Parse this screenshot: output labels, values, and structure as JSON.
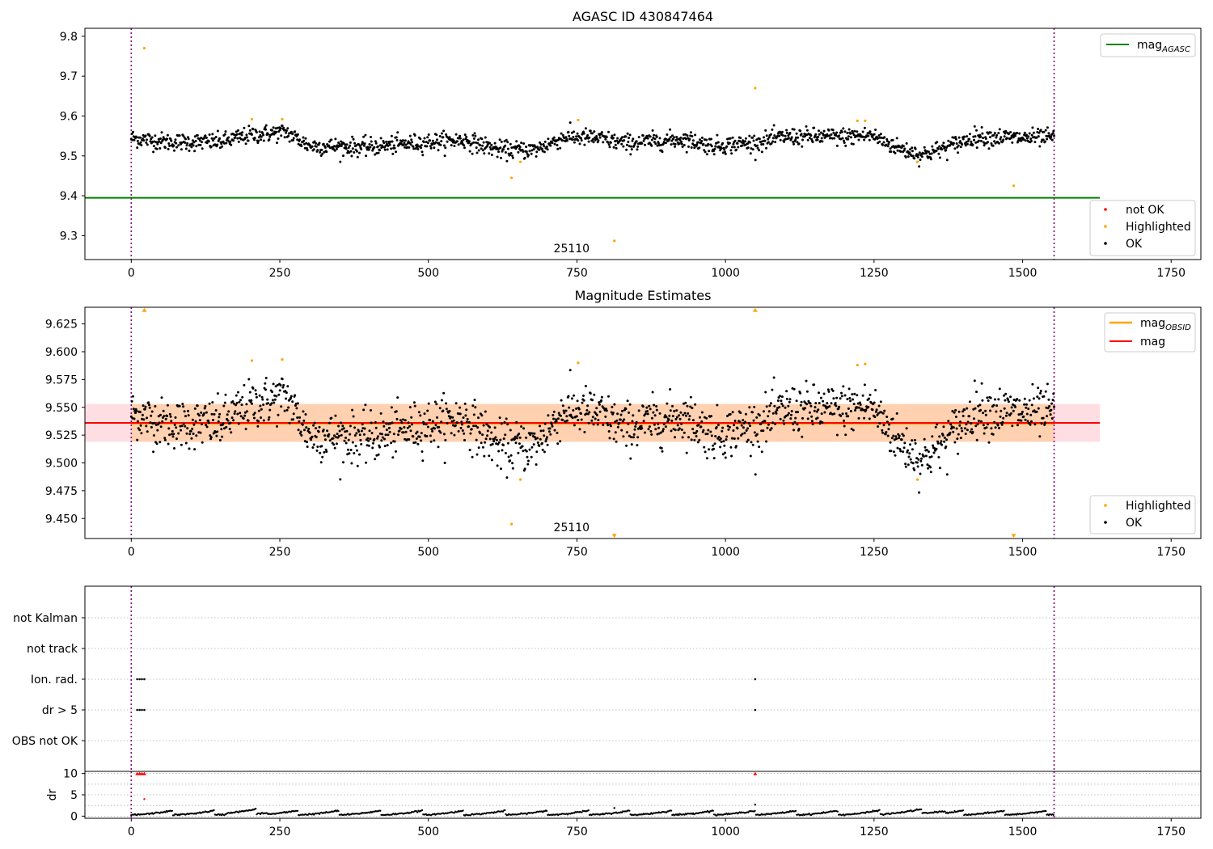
{
  "chart_data": [
    {
      "type": "scatter",
      "title": "AGASC ID 430847464",
      "xlim": [
        -78,
        1800
      ],
      "ylim": [
        9.24,
        9.82
      ],
      "x_ticks": [
        0,
        250,
        500,
        750,
        1000,
        1250,
        1500,
        1750
      ],
      "y_ticks": [
        9.3,
        9.4,
        9.5,
        9.6,
        9.7,
        9.8
      ],
      "y_tick_labels": [
        "9.3",
        "9.4",
        "9.5",
        "9.6",
        "9.7",
        "9.8"
      ],
      "vlines": [
        0,
        1553
      ],
      "obsid_annotation": {
        "text": "25110",
        "x": 775
      },
      "mag_agasc": {
        "name": "mag_AGASC",
        "label_main": "mag",
        "label_sub": "AGASC",
        "value": 9.395,
        "x_range": [
          -78,
          1630
        ],
        "color": "#008000"
      },
      "legend_upper": "top-right",
      "legend_lower": "bottom-right",
      "legend": [
        {
          "name": "not OK",
          "color": "#ff0000"
        },
        {
          "name": "Highlighted",
          "color": "#ffa500"
        },
        {
          "name": "OK",
          "color": "#000000"
        }
      ],
      "ok_series": {
        "n": 1546,
        "x_start": 0,
        "x_end": 1553,
        "color": "#000000"
      },
      "highlighted_points": [
        {
          "x": 22,
          "y": 9.77
        },
        {
          "x": 203,
          "y": 9.592
        },
        {
          "x": 254,
          "y": 9.592
        },
        {
          "x": 640,
          "y": 9.445
        },
        {
          "x": 655,
          "y": 9.485
        },
        {
          "x": 752,
          "y": 9.59
        },
        {
          "x": 813,
          "y": 9.287
        },
        {
          "x": 1050,
          "y": 9.67
        },
        {
          "x": 1222,
          "y": 9.588
        },
        {
          "x": 1235,
          "y": 9.588
        },
        {
          "x": 1323,
          "y": 9.485
        },
        {
          "x": 1485,
          "y": 9.425
        }
      ]
    },
    {
      "type": "scatter",
      "title": "Magnitude Estimates",
      "xlim": [
        -78,
        1800
      ],
      "ylim": [
        9.432,
        9.64
      ],
      "x_ticks": [
        0,
        250,
        500,
        750,
        1000,
        1250,
        1500,
        1750
      ],
      "y_ticks": [
        9.45,
        9.475,
        9.5,
        9.525,
        9.55,
        9.575,
        9.6,
        9.625
      ],
      "y_tick_labels": [
        "9.450",
        "9.475",
        "9.500",
        "9.525",
        "9.550",
        "9.575",
        "9.600",
        "9.625"
      ],
      "vlines": [
        0,
        1553
      ],
      "obsid_annotation": {
        "text": "25110",
        "x": 775
      },
      "mag_obsid": {
        "name": "mag_OBSID",
        "label_main": "mag",
        "label_sub": "OBSID",
        "value": 9.5355,
        "band": [
          9.519,
          9.553
        ],
        "x_range": [
          0,
          1553
        ],
        "color": "#ffa500"
      },
      "mag": {
        "name": "mag",
        "value": 9.536,
        "band": [
          9.519,
          9.553
        ],
        "x_range": [
          -78,
          1630
        ],
        "color": "#ff0000"
      },
      "legend_upper": "top-right",
      "legend_lower": "bottom-right",
      "legend": [
        {
          "name": "Highlighted",
          "color": "#ffa500"
        },
        {
          "name": "OK",
          "color": "#000000"
        }
      ],
      "ok_series": {
        "n": 1546,
        "x_start": 0,
        "x_end": 1553,
        "color": "#000000"
      },
      "highlighted_points": [
        {
          "x": 22,
          "y": 9.638,
          "marker": "up"
        },
        {
          "x": 203,
          "y": 9.592
        },
        {
          "x": 254,
          "y": 9.593
        },
        {
          "x": 640,
          "y": 9.445
        },
        {
          "x": 655,
          "y": 9.485
        },
        {
          "x": 752,
          "y": 9.59
        },
        {
          "x": 813,
          "y": 9.434,
          "marker": "down"
        },
        {
          "x": 1050,
          "y": 9.638,
          "marker": "up"
        },
        {
          "x": 1222,
          "y": 9.588
        },
        {
          "x": 1235,
          "y": 9.589
        },
        {
          "x": 1323,
          "y": 9.485
        },
        {
          "x": 1485,
          "y": 9.434,
          "marker": "down"
        }
      ]
    },
    {
      "type": "scatter",
      "title": "",
      "xlim": [
        -78,
        1800
      ],
      "x_ticks": [
        0,
        250,
        500,
        750,
        1000,
        1250,
        1500,
        1750
      ],
      "vlines": [
        0,
        1553
      ],
      "flag_rows": [
        "not Kalman",
        "not track",
        "Ion. rad.",
        "dr > 5",
        "OBS not OK"
      ],
      "flag_points": [
        {
          "row": "Ion. rad.",
          "x": [
            10,
            14,
            18,
            22,
            1050
          ]
        },
        {
          "row": "dr > 5",
          "x": [
            10,
            14,
            18,
            22,
            1050
          ]
        }
      ],
      "dr_panel": {
        "ylabel": "dr",
        "ylim": [
          -0.5,
          10.5
        ],
        "y_ticks": [
          0,
          5,
          10
        ],
        "clipped_points": [
          10,
          14,
          18,
          22,
          1050
        ],
        "clipped_color": "#ff0000",
        "outliers": [
          {
            "x": 22,
            "y": 4
          },
          {
            "x": 1050,
            "y": 2.7
          },
          {
            "x": 813,
            "y": 1.9
          }
        ]
      }
    }
  ]
}
